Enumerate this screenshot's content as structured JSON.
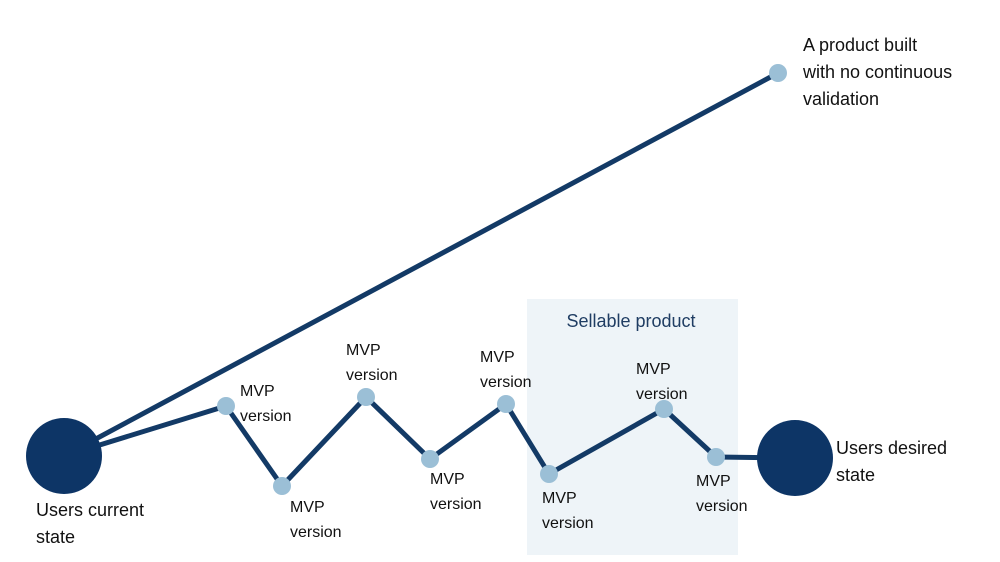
{
  "target": {
    "label": [
      "A product built",
      "with no continuous",
      "validation"
    ]
  },
  "start": {
    "label": [
      "Users current",
      "state"
    ]
  },
  "end": {
    "label": [
      "Users desired",
      "state"
    ]
  },
  "sellable_region": {
    "label": "Sellable product"
  },
  "mvp_versions": [
    {
      "label": [
        "MVP",
        "version"
      ]
    },
    {
      "label": [
        "MVP",
        "version"
      ]
    },
    {
      "label": [
        "MVP",
        "version"
      ]
    },
    {
      "label": [
        "MVP",
        "version"
      ]
    },
    {
      "label": [
        "MVP",
        "version"
      ]
    },
    {
      "label": [
        "MVP",
        "version"
      ]
    },
    {
      "label": [
        "MVP",
        "version"
      ]
    },
    {
      "label": [
        "MVP",
        "version"
      ]
    }
  ]
}
